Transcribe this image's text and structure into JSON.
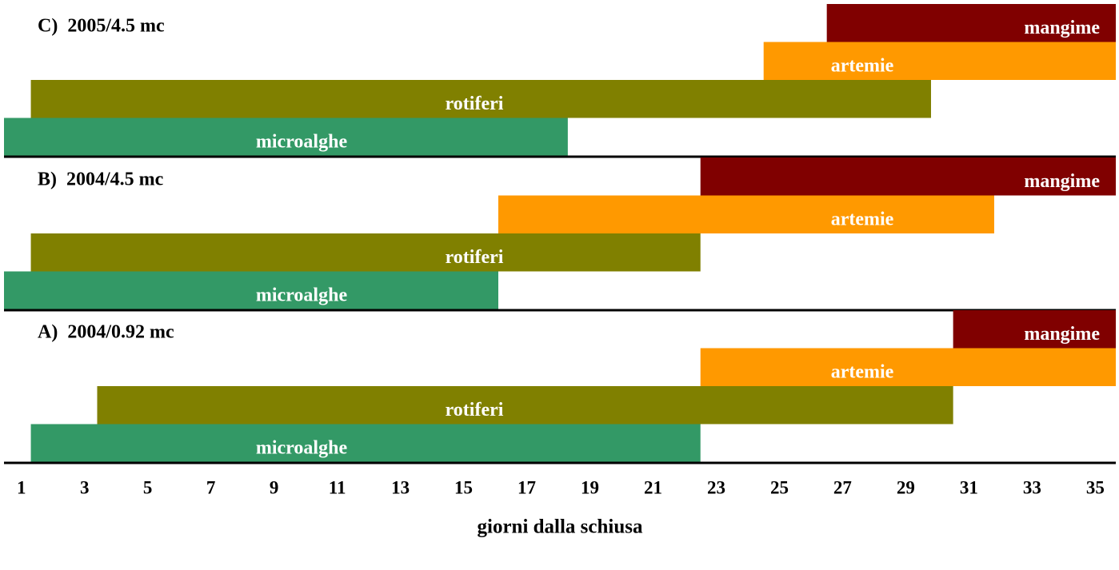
{
  "chart_data": {
    "type": "range-bar",
    "xlabel": "giorni dalla schiusa",
    "xlim": [
      0.45,
      35.65
    ],
    "xticks": [
      1,
      3,
      5,
      7,
      9,
      11,
      13,
      15,
      17,
      19,
      21,
      23,
      25,
      27,
      29,
      31,
      33,
      35
    ],
    "panels": [
      {
        "title": "C)  2005/4.5 mc",
        "series": [
          {
            "name": "mangime",
            "color": "#800000",
            "values": [
              26.5,
              35.65
            ]
          },
          {
            "name": "artemie",
            "color": "#ff9900",
            "values": [
              24.5,
              35.65
            ]
          },
          {
            "name": "rotiferi",
            "color": "#808000",
            "values": [
              1.3,
              29.8
            ]
          },
          {
            "name": "microalghe",
            "color": "#339966",
            "values": [
              0.45,
              18.3
            ]
          }
        ]
      },
      {
        "title": "B)  2004/4.5 mc",
        "series": [
          {
            "name": "mangime",
            "color": "#800000",
            "values": [
              22.5,
              35.65
            ]
          },
          {
            "name": "artemie",
            "color": "#ff9900",
            "values": [
              16.1,
              31.8
            ]
          },
          {
            "name": "rotiferi",
            "color": "#808000",
            "values": [
              1.3,
              22.5
            ]
          },
          {
            "name": "microalghe",
            "color": "#339966",
            "values": [
              0.45,
              16.1
            ]
          }
        ]
      },
      {
        "title": "A)  2004/0.92 mc",
        "series": [
          {
            "name": "mangime",
            "color": "#800000",
            "values": [
              30.5,
              35.65
            ]
          },
          {
            "name": "artemie",
            "color": "#ff9900",
            "values": [
              22.5,
              35.65
            ]
          },
          {
            "name": "rotiferi",
            "color": "#808000",
            "values": [
              3.4,
              30.5
            ]
          },
          {
            "name": "microalghe",
            "color": "#339966",
            "values": [
              1.3,
              22.5
            ]
          }
        ]
      }
    ]
  }
}
